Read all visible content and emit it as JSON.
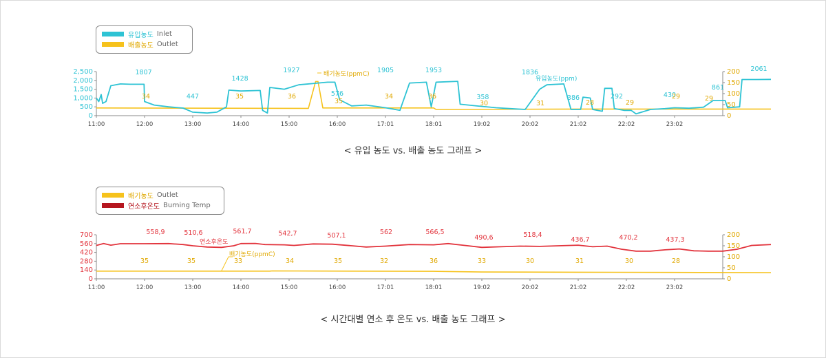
{
  "colors": {
    "inlet": "#2ec3d4",
    "outlet": "#f6c21c",
    "temp": "#e2333c",
    "temp_legend": "#b5161f",
    "axis": "#9a9a9a"
  },
  "x_ticks": [
    "11:00",
    "12:00",
    "13:00",
    "14:00",
    "15:00",
    "16:00",
    "17:01",
    "18:01",
    "19:02",
    "20:02",
    "21:02",
    "22:02",
    "23:02"
  ],
  "chart1": {
    "caption": "< 유입 농도 vs. 배출 농도 그래프 >",
    "legend": [
      {
        "label_ko": "유입농도",
        "label_en": "Inlet",
        "color": "#2ec3d4"
      },
      {
        "label_ko": "배출농도",
        "label_en": "Outlet",
        "color": "#f6c21c"
      }
    ],
    "left_ticks": [
      "2,500",
      "2,000",
      "1,500",
      "1,000",
      "500",
      "0"
    ],
    "right_ticks": [
      "200",
      "150",
      "100",
      "50",
      "0"
    ],
    "annot_inlet": "유입농도(ppm)",
    "annot_outlet": "배기농도(ppmC)",
    "inlet_peak_labels": [
      "1807",
      "447",
      "1428",
      "1927",
      "576",
      "1905",
      "1953",
      "358",
      "1836",
      "386",
      "292",
      "430",
      "861",
      "2061"
    ],
    "outlet_labels": [
      "34",
      "35",
      "36",
      "35",
      "34",
      "36",
      "30",
      "31",
      "28",
      "29",
      "29",
      "29"
    ]
  },
  "chart2": {
    "caption": "< 시간대별 연소 후 온도 vs. 배출 농도 그래프 >",
    "legend": [
      {
        "label_ko": "배기농도",
        "label_en": "Outlet",
        "color": "#f6c21c"
      },
      {
        "label_ko": "연소후온도",
        "label_en": "Burning Temp",
        "color": "#b5161f"
      }
    ],
    "left_ticks": [
      "700",
      "560",
      "420",
      "280",
      "140",
      "0"
    ],
    "right_ticks": [
      "200",
      "150",
      "100",
      "50",
      "0"
    ],
    "annot_temp": "연소후온도",
    "annot_outlet": "배기농도(ppmC)",
    "temp_labels": [
      "558,9",
      "510,6",
      "561,7",
      "542,7",
      "507,1",
      "562",
      "566,5",
      "490,6",
      "518,4",
      "436,7",
      "470,2",
      "437,3"
    ],
    "outlet_labels": [
      "35",
      "35",
      "33",
      "34",
      "35",
      "32",
      "36",
      "33",
      "30",
      "31",
      "30",
      "28"
    ]
  },
  "chart_data": [
    {
      "type": "line",
      "title": "< 유입 농도 vs. 배출 농도 그래프 >",
      "x": [
        "11:00",
        "12:00",
        "13:00",
        "14:00",
        "15:00",
        "16:00",
        "17:01",
        "18:01",
        "19:02",
        "20:02",
        "21:02",
        "22:02",
        "23:02"
      ],
      "y_left_range": [
        0,
        2500
      ],
      "y_right_range": [
        0,
        200
      ],
      "series": [
        {
          "name": "유입농도 Inlet",
          "axis": "left",
          "points": [
            [
              0,
              1000
            ],
            [
              0.05,
              800
            ],
            [
              0.1,
              1200
            ],
            [
              0.13,
              700
            ],
            [
              0.2,
              800
            ],
            [
              0.3,
              1700
            ],
            [
              0.5,
              1800
            ],
            [
              0.7,
              1780
            ],
            [
              0.99,
              1780
            ],
            [
              1.0,
              800
            ],
            [
              1.2,
              600
            ],
            [
              1.5,
              500
            ],
            [
              1.8,
              430
            ],
            [
              2.0,
              200
            ],
            [
              2.3,
              150
            ],
            [
              2.5,
              200
            ],
            [
              2.7,
              500
            ],
            [
              2.75,
              1450
            ],
            [
              3.0,
              1400
            ],
            [
              3.4,
              1430
            ],
            [
              3.45,
              300
            ],
            [
              3.55,
              150
            ],
            [
              3.6,
              1600
            ],
            [
              3.9,
              1500
            ],
            [
              4.2,
              1750
            ],
            [
              4.8,
              1900
            ],
            [
              4.95,
              1900
            ],
            [
              5.05,
              900
            ],
            [
              5.3,
              550
            ],
            [
              5.6,
              600
            ],
            [
              6.0,
              450
            ],
            [
              6.3,
              300
            ],
            [
              6.5,
              1850
            ],
            [
              6.85,
              1900
            ],
            [
              6.95,
              500
            ],
            [
              7.05,
              1900
            ],
            [
              7.5,
              1950
            ],
            [
              7.55,
              650
            ],
            [
              7.9,
              550
            ],
            [
              8.3,
              450
            ],
            [
              8.6,
              400
            ],
            [
              8.9,
              350
            ],
            [
              9.2,
              1500
            ],
            [
              9.35,
              1750
            ],
            [
              9.7,
              1800
            ],
            [
              9.85,
              350
            ],
            [
              10.05,
              350
            ],
            [
              10.1,
              1050
            ],
            [
              10.25,
              1000
            ],
            [
              10.3,
              350
            ],
            [
              10.5,
              250
            ],
            [
              10.55,
              1550
            ],
            [
              10.7,
              1550
            ],
            [
              10.75,
              400
            ],
            [
              10.95,
              300
            ],
            [
              11.1,
              300
            ],
            [
              11.2,
              100
            ],
            [
              11.5,
              350
            ],
            [
              11.8,
              400
            ],
            [
              12.0,
              450
            ],
            [
              12.3,
              420
            ],
            [
              12.6,
              480
            ],
            [
              12.8,
              860
            ],
            [
              13.05,
              860
            ],
            [
              13.1,
              450
            ],
            [
              13.35,
              500
            ],
            [
              13.4,
              2050
            ],
            [
              13.7,
              2050
            ],
            [
              14.0,
              2060
            ]
          ]
        },
        {
          "name": "배출농도 Outlet",
          "axis": "right",
          "points": [
            [
              0,
              35
            ],
            [
              4.4,
              33
            ],
            [
              4.55,
              155
            ],
            [
              4.6,
              155
            ],
            [
              4.7,
              35
            ],
            [
              7.0,
              35
            ],
            [
              7.05,
              28
            ],
            [
              10.0,
              30
            ],
            [
              14.0,
              30
            ]
          ]
        }
      ]
    },
    {
      "type": "line",
      "title": "< 시간대별 연소 후 온도 vs. 배출 농도 그래프 >",
      "x": [
        "11:00",
        "12:00",
        "13:00",
        "14:00",
        "15:00",
        "16:00",
        "17:01",
        "18:01",
        "19:02",
        "20:02",
        "21:02",
        "22:02",
        "23:02"
      ],
      "y_left_range": [
        0,
        700
      ],
      "y_right_range": [
        0,
        200
      ],
      "series": [
        {
          "name": "연소후온도 Burning Temp",
          "axis": "left",
          "points": [
            [
              0,
              530
            ],
            [
              0.15,
              560
            ],
            [
              0.3,
              535
            ],
            [
              0.5,
              558
            ],
            [
              1.0,
              558
            ],
            [
              1.5,
              560
            ],
            [
              1.8,
              545
            ],
            [
              2.0,
              525
            ],
            [
              2.3,
              505
            ],
            [
              2.6,
              500
            ],
            [
              2.85,
              525
            ],
            [
              3.0,
              560
            ],
            [
              3.3,
              562
            ],
            [
              3.5,
              545
            ],
            [
              3.9,
              540
            ],
            [
              4.1,
              530
            ],
            [
              4.5,
              555
            ],
            [
              4.9,
              550
            ],
            [
              5.3,
              525
            ],
            [
              5.6,
              505
            ],
            [
              6.0,
              520
            ],
            [
              6.5,
              545
            ],
            [
              7.0,
              540
            ],
            [
              7.3,
              560
            ],
            [
              7.6,
              535
            ],
            [
              8.0,
              500
            ],
            [
              8.4,
              510
            ],
            [
              8.8,
              520
            ],
            [
              9.2,
              515
            ],
            [
              9.6,
              525
            ],
            [
              10.0,
              535
            ],
            [
              10.3,
              510
            ],
            [
              10.6,
              520
            ],
            [
              10.9,
              470
            ],
            [
              11.2,
              440
            ],
            [
              11.5,
              440
            ],
            [
              11.8,
              460
            ],
            [
              12.1,
              475
            ],
            [
              12.4,
              445
            ],
            [
              12.7,
              440
            ],
            [
              13.0,
              440
            ],
            [
              13.3,
              470
            ],
            [
              13.6,
              530
            ],
            [
              14.0,
              545
            ]
          ]
        },
        {
          "name": "배기농도 Outlet",
          "axis": "right",
          "points": [
            [
              0,
              35
            ],
            [
              3.6,
              35
            ],
            [
              3.65,
              36
            ],
            [
              7.0,
              34
            ],
            [
              8.0,
              31
            ],
            [
              10.0,
              30
            ],
            [
              12.0,
              29
            ],
            [
              14.0,
              28
            ]
          ]
        }
      ]
    }
  ]
}
